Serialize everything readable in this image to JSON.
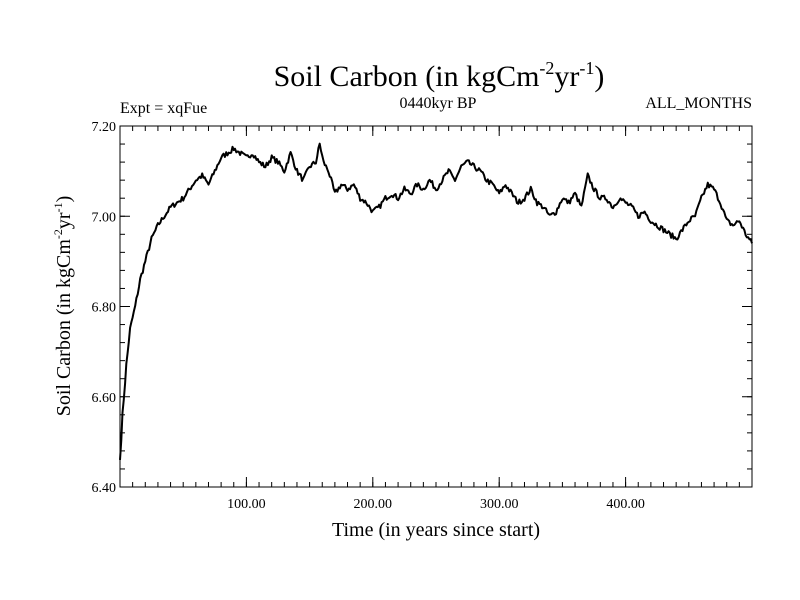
{
  "chart_data": {
    "type": "line",
    "title": {
      "base": "Soil Carbon (in kgCm",
      "exp1": "-2",
      "mid": "yr",
      "exp2": "-1",
      "tail": ")"
    },
    "expt_label": "Expt = xqFue",
    "subtitle": "0440kyr BP",
    "period": "ALL_MONTHS",
    "xlabel": "Time (in years since start)",
    "ylabel": {
      "base": "Soil Carbon (in kgCm",
      "exp1": "-2",
      "mid": "yr",
      "exp2": "-1",
      "tail": ")"
    },
    "xlim": [
      0,
      500
    ],
    "ylim": [
      6.4,
      7.2
    ],
    "x_ticks": [
      100,
      200,
      300,
      400
    ],
    "x_tick_labels": [
      "100.00",
      "200.00",
      "300.00",
      "400.00"
    ],
    "y_ticks": [
      6.4,
      6.6,
      6.8,
      7.0,
      7.2
    ],
    "y_tick_labels": [
      "6.40",
      "6.60",
      "6.80",
      "7.00",
      "7.20"
    ],
    "series": [
      {
        "name": "Soil Carbon",
        "x": [
          0,
          2,
          5,
          8,
          12,
          16,
          20,
          25,
          30,
          35,
          40,
          45,
          50,
          55,
          60,
          65,
          70,
          75,
          80,
          85,
          90,
          95,
          100,
          105,
          110,
          115,
          120,
          125,
          130,
          135,
          140,
          145,
          150,
          155,
          158,
          161,
          165,
          170,
          175,
          180,
          185,
          190,
          195,
          200,
          205,
          210,
          215,
          220,
          225,
          230,
          235,
          240,
          245,
          250,
          255,
          260,
          265,
          270,
          275,
          280,
          285,
          290,
          295,
          300,
          305,
          310,
          315,
          320,
          325,
          330,
          335,
          340,
          345,
          350,
          355,
          360,
          365,
          370,
          375,
          380,
          385,
          390,
          395,
          400,
          405,
          410,
          415,
          420,
          425,
          430,
          435,
          440,
          445,
          450,
          455,
          460,
          465,
          470,
          475,
          480,
          485,
          490,
          495,
          500
        ],
        "y": [
          6.46,
          6.56,
          6.67,
          6.75,
          6.8,
          6.86,
          6.9,
          6.95,
          6.98,
          7.0,
          7.02,
          7.03,
          7.04,
          7.06,
          7.08,
          7.09,
          7.07,
          7.1,
          7.13,
          7.14,
          7.15,
          7.14,
          7.13,
          7.14,
          7.12,
          7.11,
          7.13,
          7.12,
          7.1,
          7.14,
          7.1,
          7.08,
          7.11,
          7.12,
          7.16,
          7.12,
          7.1,
          7.05,
          7.07,
          7.06,
          7.07,
          7.04,
          7.03,
          7.01,
          7.02,
          7.04,
          7.05,
          7.04,
          7.06,
          7.05,
          7.07,
          7.06,
          7.08,
          7.06,
          7.08,
          7.1,
          7.08,
          7.11,
          7.12,
          7.11,
          7.1,
          7.08,
          7.07,
          7.05,
          7.07,
          7.05,
          7.03,
          7.04,
          7.06,
          7.03,
          7.02,
          7.0,
          7.01,
          7.04,
          7.03,
          7.05,
          7.02,
          7.09,
          7.06,
          7.04,
          7.04,
          7.02,
          7.04,
          7.03,
          7.02,
          7.0,
          7.01,
          6.99,
          6.98,
          6.97,
          6.96,
          6.95,
          6.97,
          6.99,
          7.0,
          7.04,
          7.07,
          7.06,
          7.03,
          6.99,
          6.98,
          6.99,
          6.96,
          6.94
        ]
      }
    ]
  }
}
